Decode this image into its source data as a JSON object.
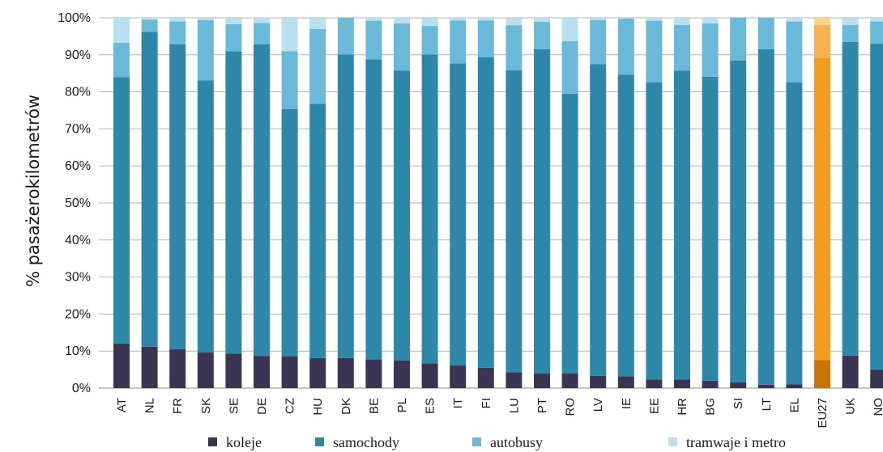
{
  "chart_data": {
    "type": "bar",
    "stacked": true,
    "title": "",
    "ylabel": "% pasażerokilometrów",
    "xlabel": "",
    "ylim": [
      0,
      100
    ],
    "yticks": [
      "0%",
      "10%",
      "20%",
      "30%",
      "40%",
      "50%",
      "60%",
      "70%",
      "80%",
      "90%",
      "100%"
    ],
    "grid": "horizontal",
    "legend_position": "bottom",
    "categories": [
      "AT",
      "NL",
      "FR",
      "SK",
      "SE",
      "DE",
      "CZ",
      "HU",
      "DK",
      "BE",
      "PL",
      "ES",
      "IT",
      "FI",
      "LU",
      "PT",
      "RO",
      "LV",
      "IE",
      "EE",
      "HR",
      "BG",
      "SI",
      "LT",
      "EL",
      "EU27",
      "UK",
      "NO"
    ],
    "highlight_category": "EU27",
    "series": [
      {
        "name": "koleje",
        "color": "#3b3553",
        "values": [
          12.0,
          11.2,
          10.5,
          9.6,
          9.3,
          8.7,
          8.6,
          8.1,
          8.1,
          7.8,
          7.5,
          6.7,
          6.1,
          5.5,
          4.3,
          4.0,
          4.0,
          3.3,
          3.2,
          2.3,
          2.3,
          2.0,
          1.6,
          0.9,
          1.0,
          7.6,
          8.8,
          5.0
        ]
      },
      {
        "name": "samochody",
        "color": "#2e86a8",
        "values": [
          72.0,
          85.0,
          82.3,
          73.5,
          81.7,
          84.1,
          66.8,
          68.7,
          82.0,
          81.0,
          78.2,
          83.4,
          81.6,
          83.8,
          81.5,
          87.5,
          75.5,
          84.2,
          81.4,
          80.3,
          83.4,
          82.1,
          86.9,
          90.6,
          81.6,
          81.5,
          84.7,
          88.0
        ]
      },
      {
        "name": "autobusy",
        "color": "#6bb9d9",
        "values": [
          9.3,
          3.3,
          6.2,
          16.3,
          7.3,
          5.8,
          15.6,
          20.2,
          9.9,
          10.4,
          12.8,
          7.7,
          11.6,
          10.0,
          12.2,
          7.4,
          14.2,
          11.9,
          15.2,
          16.6,
          12.4,
          14.4,
          11.5,
          8.5,
          16.4,
          9.0,
          4.6,
          6.0
        ]
      },
      {
        "name": "tramwaje i metro",
        "color": "#b9e0ee",
        "values": [
          6.7,
          0.5,
          1.0,
          0.6,
          1.7,
          1.4,
          9.0,
          3.0,
          0,
          0.8,
          1.5,
          2.2,
          0.7,
          0.7,
          2.0,
          1.1,
          6.3,
          0.6,
          0.2,
          0.8,
          1.9,
          1.5,
          0,
          0,
          1.0,
          1.9,
          1.9,
          1.0
        ]
      }
    ],
    "highlight_colors": [
      "#c9730b",
      "#f59d22",
      "#f7b150",
      "#fad48f"
    ]
  }
}
